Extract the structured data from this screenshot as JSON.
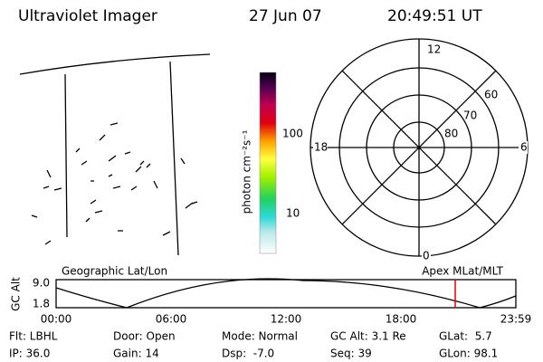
{
  "header": {
    "title": "Ultraviolet Imager",
    "date": "27 Jun 07",
    "time": "20:49:51 UT"
  },
  "colorbar": {
    "label": "photon cm⁻²s⁻¹",
    "ticks": [
      "100",
      "10"
    ]
  },
  "polar": {
    "hour_labels": [
      "12",
      "18",
      "6",
      "0"
    ],
    "lat_labels": [
      "60",
      "70",
      "80"
    ]
  },
  "timeline": {
    "left_title": "Geographic Lat/Lon",
    "right_title": "Apex MLat/MLT",
    "axis_label": "GC Alt",
    "y_labels": [
      "9.0",
      "1.8"
    ],
    "x_labels": [
      "00:00",
      "06:00",
      "12:00",
      "18:00",
      "23:59"
    ]
  },
  "status": {
    "rows": [
      [
        "Flt: LBHL",
        "Door: Open",
        "Mode: Normal",
        "GC Alt: 3.1 Re",
        "GLat:  5.7"
      ],
      [
        "IP: 36.0",
        "Gain: 14",
        "Dsp:  -7.0",
        "Seq: 39",
        "GLon: 98.1"
      ]
    ]
  }
}
